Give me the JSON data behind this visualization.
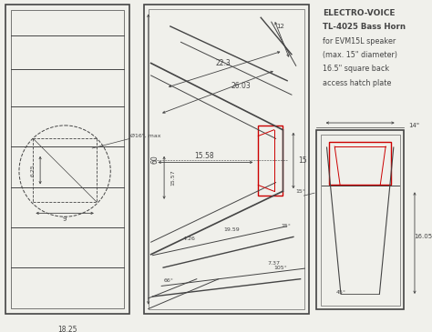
{
  "bg_color": "#f0f0eb",
  "line_color": "#444444",
  "red_color": "#cc0000",
  "title_lines": [
    "ELECTRO-VOICE",
    "TL-4025 Bass Horn",
    "for EVM15L speaker",
    "(max. 15\" diameter)",
    "16.5\" square back",
    "access hatch plate"
  ],
  "dims": {
    "d60": "60",
    "d1557": "15.57",
    "d16max": "Ø16\", max",
    "d22_3": "22.3",
    "d26_03": "26.03",
    "d15_58": "15.58",
    "d15": "15",
    "d4_26": "4.26",
    "d19_59": "19.59",
    "d7_37": "7.37",
    "d66deg": "66°",
    "d105deg": "105°",
    "d15deg": "15°",
    "d12": "12",
    "d45deg": "45°",
    "d16_05": "16.05",
    "d14": "14\""
  }
}
